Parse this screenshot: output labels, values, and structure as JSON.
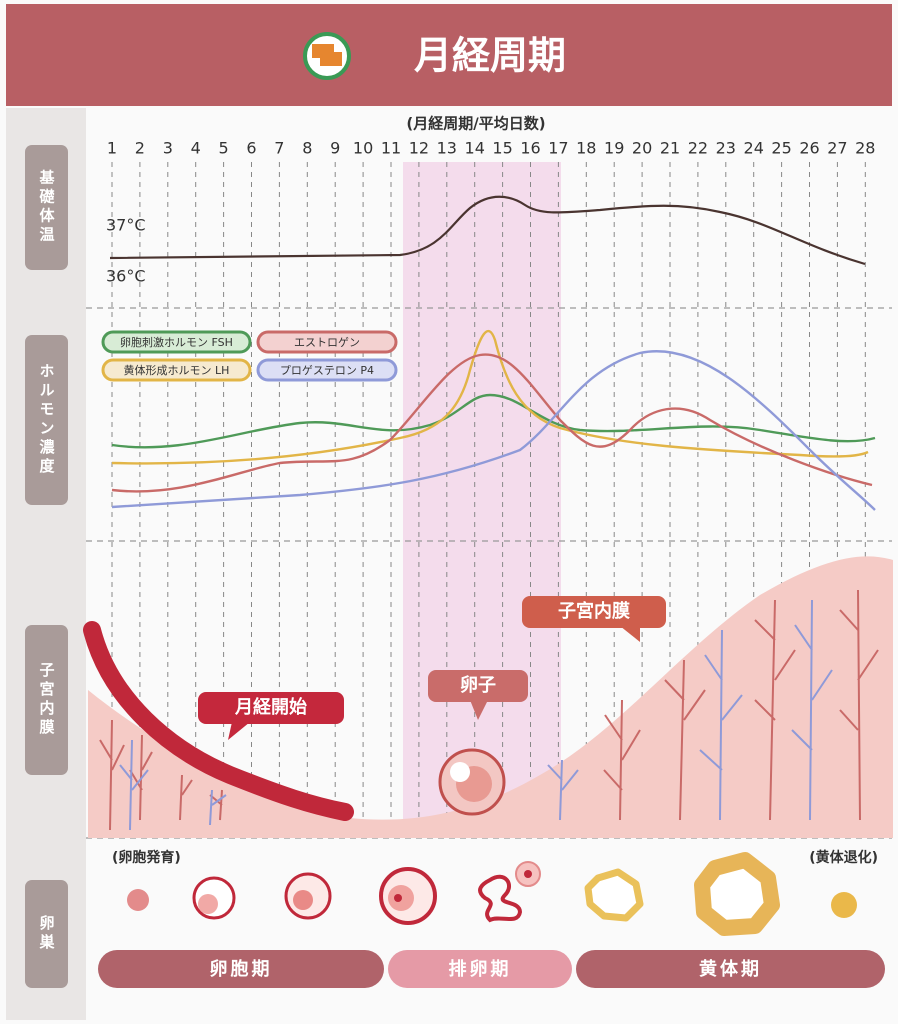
{
  "header": {
    "title": "月経周期"
  },
  "axis": {
    "label": "(月経周期/平均日数)",
    "days": [
      1,
      2,
      3,
      4,
      5,
      6,
      7,
      8,
      9,
      10,
      11,
      12,
      13,
      14,
      15,
      16,
      17,
      18,
      19,
      20,
      21,
      22,
      23,
      24,
      25,
      26,
      27,
      28
    ]
  },
  "sections": [
    "基礎体温",
    "ホルモン濃度",
    "子宮内膜",
    "卵巣"
  ],
  "temperature": {
    "labels": [
      "37°C",
      "36°C"
    ]
  },
  "legend": [
    "卵胞刺激ホルモン FSH",
    "黄体形成ホルモン LH",
    "エストロゲン",
    "プロゲステロン P4"
  ],
  "callouts": {
    "menstruation": "月経開始",
    "egg": "卵子",
    "endometrium": "子宮内膜"
  },
  "ovary": {
    "left_note": "(卵胞発育)",
    "right_note": "(黄体退化)"
  },
  "phases": [
    "卵胞期",
    "排卵期",
    "黄体期"
  ]
}
